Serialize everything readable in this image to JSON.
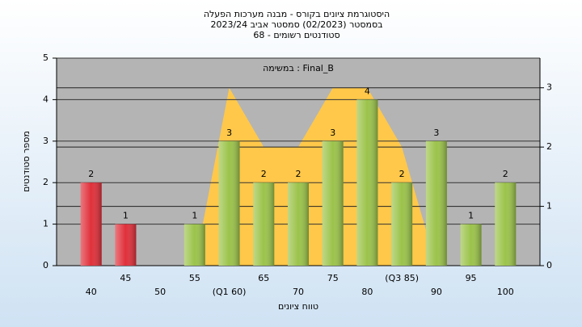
{
  "chart_data": {
    "type": "bar",
    "title": "היסטוגרמת ציונים בקורס - מבנה מערכות הפעלה",
    "subtitle": "בסמסטר  (02/2023)  סמסטר אביב 2023/24",
    "subtitle2": "סטודנטים רשומים - 68",
    "legend": "במשימה : Final_B",
    "xlabel": "טווח ציונים",
    "ylabel": "מספר סטודנטים",
    "categories": [
      "40",
      "45",
      "50",
      "55",
      "(Q1 60)",
      "65",
      "70",
      "75",
      "80",
      "(Q3 85)",
      "90",
      "95",
      "100"
    ],
    "series": [
      {
        "values": [
          2,
          1,
          0,
          1,
          3,
          2,
          2,
          3,
          4,
          2,
          3,
          1,
          2
        ],
        "colors": [
          "#e0303a",
          "#e0303a",
          "#9bc34a",
          "#9bc34a",
          "#9bc34a",
          "#9bc34a",
          "#9bc34a",
          "#9bc34a",
          "#9bc34a",
          "#9bc34a",
          "#9bc34a",
          "#9bc34a",
          "#9bc34a"
        ]
      },
      {
        "type": "area",
        "axis": "y2",
        "color": "#ffc84a",
        "values": [
          null,
          null,
          null,
          0,
          3,
          2,
          2,
          3,
          3,
          2,
          0,
          null,
          null
        ]
      }
    ],
    "ylim": [
      0,
      5
    ],
    "yticks": [
      0,
      1,
      2,
      3,
      4,
      5
    ],
    "y2lim": [
      0,
      3.5
    ],
    "y2ticks": [
      0,
      1,
      2,
      3
    ],
    "grid": true
  }
}
